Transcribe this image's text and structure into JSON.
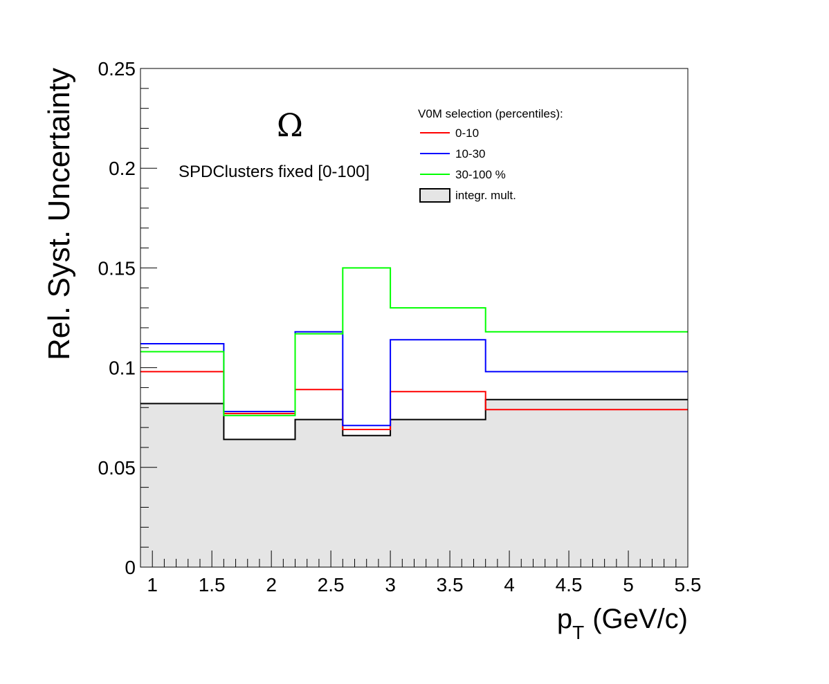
{
  "chart_data": {
    "type": "line",
    "title": "",
    "xlabel": "p",
    "xlabel_sub": "T",
    "xlabel_unit": "(GeV/c)",
    "ylabel": "Rel. Syst. Uncertainty",
    "xlim": [
      0.9,
      5.5
    ],
    "ylim": [
      0,
      0.25
    ],
    "x_ticks": [
      1,
      1.5,
      2,
      2.5,
      3,
      3.5,
      4,
      4.5,
      5,
      5.5
    ],
    "x_tick_labels": [
      "1",
      "1.5",
      "2",
      "2.5",
      "3",
      "3.5",
      "4",
      "4.5",
      "5",
      "5.5"
    ],
    "y_ticks": [
      0,
      0.05,
      0.1,
      0.15,
      0.2,
      0.25
    ],
    "y_tick_labels": [
      "0",
      "0.05",
      "0.1",
      "0.15",
      "0.2",
      "0.25"
    ],
    "bin_edges": [
      0.9,
      1.6,
      2.2,
      2.6,
      3.0,
      3.8,
      5.5
    ],
    "series": [
      {
        "name": "0-10",
        "color": "#ff0000",
        "values": [
          0.098,
          0.077,
          0.089,
          0.069,
          0.088,
          0.079
        ]
      },
      {
        "name": "10-30",
        "color": "#0000ff",
        "values": [
          0.112,
          0.078,
          0.118,
          0.071,
          0.114,
          0.098
        ]
      },
      {
        "name": "30-100 %",
        "color": "#00ff00",
        "values": [
          0.108,
          0.076,
          0.117,
          0.15,
          0.13,
          0.118
        ]
      },
      {
        "name": "integr. mult.",
        "color": "#000000",
        "fill": "#e5e5e5",
        "values": [
          0.082,
          0.064,
          0.074,
          0.066,
          0.074,
          0.084
        ]
      }
    ],
    "legend": {
      "header": "V0M selection (percentiles):",
      "placement": "top-right"
    },
    "annotations": {
      "particle": "Ω",
      "selection": "SPDClusters fixed [0-100]"
    },
    "grid": false
  }
}
